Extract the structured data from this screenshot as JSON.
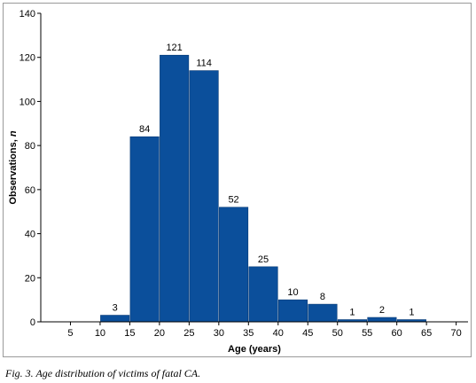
{
  "caption": "Fig. 3. Age distribution of victims of fatal CA.",
  "colors": {
    "bar": "#0b4f9b",
    "bar_edge": "#073a75",
    "axis": "#000000"
  },
  "chart_data": {
    "type": "bar",
    "title": "",
    "xlabel": "Age (years)",
    "ylabel_main": "Observations, ",
    "ylabel_italic": "n",
    "xlim": [
      0,
      72
    ],
    "ylim": [
      0,
      140
    ],
    "x_ticks": [
      5,
      10,
      15,
      20,
      25,
      30,
      35,
      40,
      45,
      50,
      55,
      60,
      65,
      70
    ],
    "y_ticks": [
      0,
      20,
      40,
      60,
      80,
      100,
      120,
      140
    ],
    "bin_width": 5,
    "bins": [
      {
        "start": 10,
        "end": 15,
        "value": 3
      },
      {
        "start": 15,
        "end": 20,
        "value": 84
      },
      {
        "start": 20,
        "end": 25,
        "value": 121
      },
      {
        "start": 25,
        "end": 30,
        "value": 114
      },
      {
        "start": 30,
        "end": 35,
        "value": 52
      },
      {
        "start": 35,
        "end": 40,
        "value": 25
      },
      {
        "start": 40,
        "end": 45,
        "value": 10
      },
      {
        "start": 45,
        "end": 50,
        "value": 8
      },
      {
        "start": 50,
        "end": 55,
        "value": 1
      },
      {
        "start": 55,
        "end": 60,
        "value": 2
      },
      {
        "start": 60,
        "end": 65,
        "value": 1
      }
    ],
    "grid": false,
    "legend": "none"
  }
}
